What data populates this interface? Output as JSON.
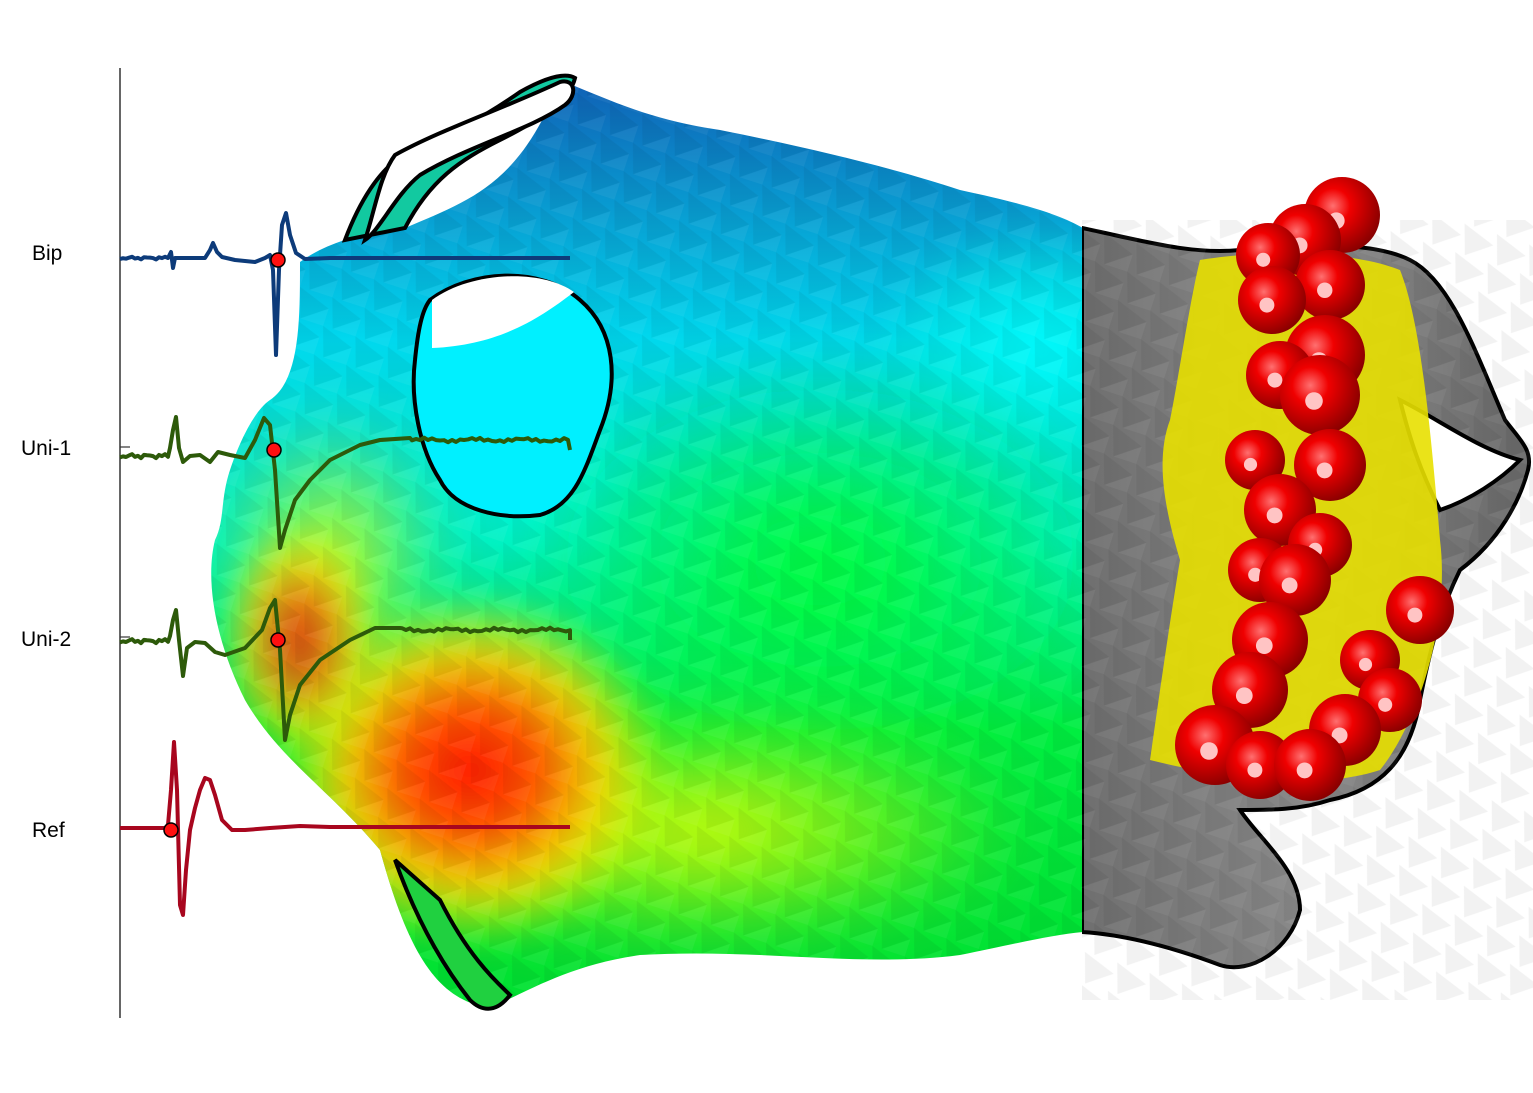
{
  "traces": [
    {
      "key": "bip",
      "label": "Bip",
      "color": "#0d3b7a"
    },
    {
      "key": "uni1",
      "label": "Uni-1",
      "color": "#2d5a0a"
    },
    {
      "key": "uni2",
      "label": "Uni-2",
      "color": "#2d5a0a"
    },
    {
      "key": "ref",
      "label": "Ref",
      "color": "#a8061e"
    }
  ],
  "colors": {
    "marker": "#ff1010",
    "lesion": "#e60000",
    "ablation_zone": "#e8e000",
    "scar_tissue": "#7a7a7a",
    "outline": "#000000"
  },
  "map_palette": [
    "#0a55b0",
    "#00e6ff",
    "#00ff33",
    "#f0ff00",
    "#ff1a00"
  ]
}
